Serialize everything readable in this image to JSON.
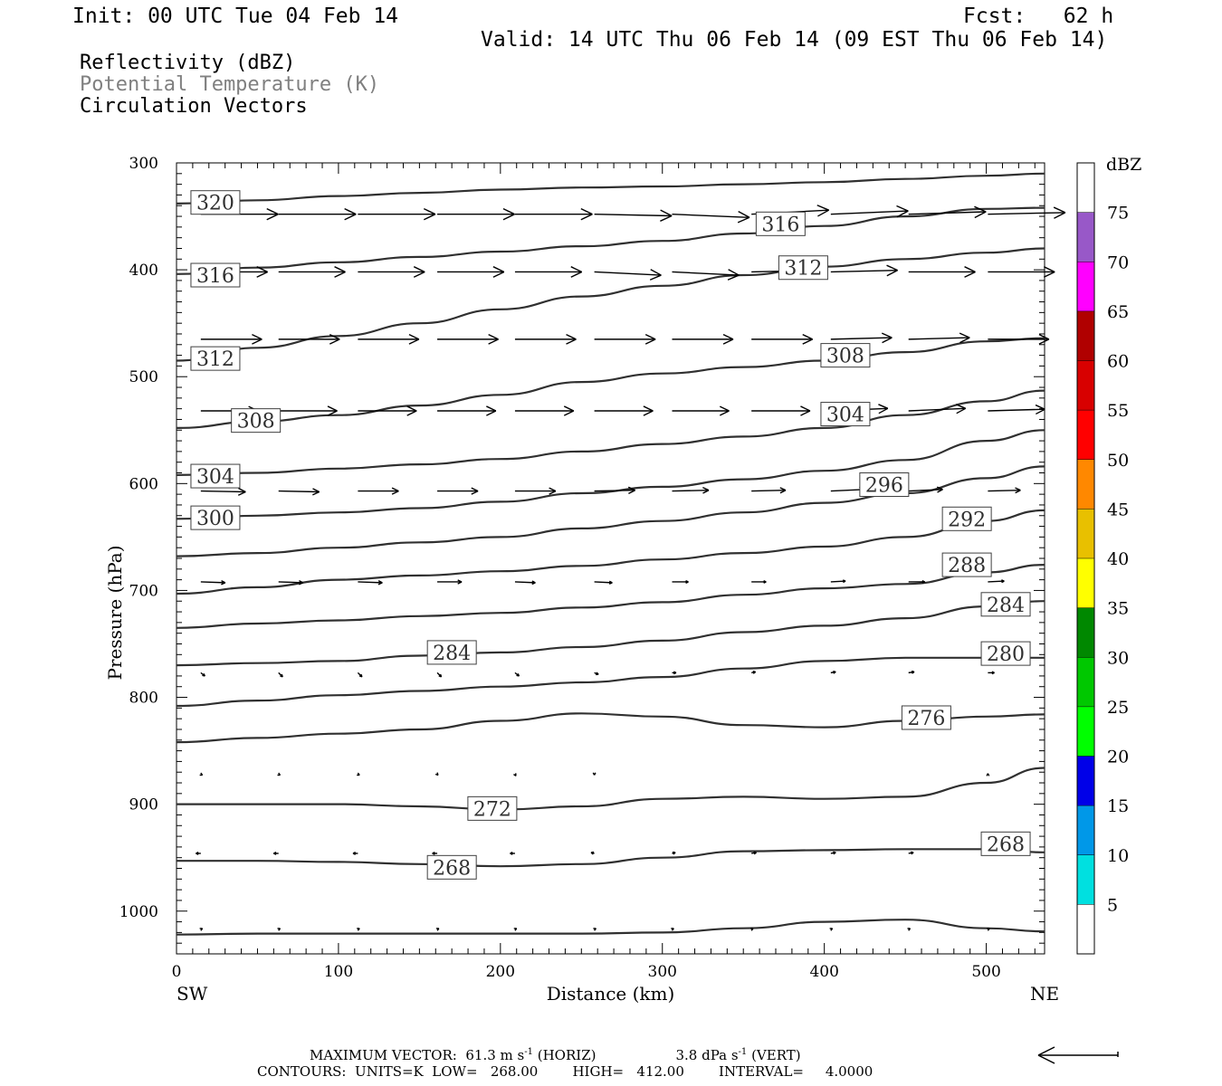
{
  "header": {
    "init": "Init: 00 UTC Tue 04 Feb 14",
    "fcst": "Fcst:   62 h",
    "valid": "Valid: 14 UTC Thu 06 Feb 14 (09 EST Thu 06 Feb 14)"
  },
  "fields": [
    {
      "label": "Reflectivity (dBZ)",
      "color": "#000000"
    },
    {
      "label": "Potential Temperature (K)",
      "color": "#808080"
    },
    {
      "label": "Circulation Vectors",
      "color": "#000000"
    }
  ],
  "chart_data": {
    "type": "line",
    "ylabel": "Pressure (hPa)",
    "xlabel": "Distance (km)",
    "xlim": [
      0,
      536
    ],
    "ylim": [
      1040,
      300
    ],
    "xticks": [
      0,
      100,
      200,
      300,
      400,
      500
    ],
    "yticks": [
      300,
      400,
      500,
      600,
      700,
      800,
      900,
      1000
    ],
    "x_left_label": "SW",
    "x_right_label": "NE",
    "x": [
      0,
      50,
      100,
      150,
      200,
      250,
      300,
      350,
      400,
      450,
      500,
      536
    ],
    "contours": [
      {
        "name": "",
        "values": [
          1022,
          1021,
          1021,
          1021,
          1021,
          1021,
          1020,
          1016,
          1010,
          1008,
          1016,
          1019
        ]
      },
      {
        "name": "268",
        "values": [
          953,
          953,
          954,
          956,
          958,
          956,
          950,
          944,
          943,
          942,
          942,
          945
        ]
      },
      {
        "name": "272",
        "values": [
          900,
          900,
          900,
          902,
          905,
          902,
          895,
          893,
          895,
          893,
          880,
          866
        ]
      },
      {
        "name": "276",
        "values": [
          842,
          838,
          834,
          830,
          822,
          815,
          818,
          826,
          828,
          822,
          818,
          816
        ]
      },
      {
        "name": "280",
        "values": [
          808,
          803,
          798,
          794,
          790,
          786,
          781,
          773,
          766,
          763,
          763,
          763
        ]
      },
      {
        "name": "284",
        "values": [
          770,
          768,
          766,
          761,
          758,
          753,
          747,
          739,
          733,
          726,
          715,
          710
        ]
      },
      {
        "name": "288",
        "values": [
          735,
          731,
          728,
          724,
          721,
          716,
          711,
          704,
          698,
          694,
          683,
          676
        ]
      },
      {
        "name": "292",
        "values": [
          703,
          697,
          690,
          686,
          682,
          677,
          671,
          665,
          659,
          650,
          635,
          625
        ]
      },
      {
        "name": "296",
        "values": [
          668,
          665,
          660,
          655,
          650,
          642,
          635,
          627,
          618,
          609,
          595,
          584
        ]
      },
      {
        "name": "300",
        "values": [
          633,
          630,
          627,
          623,
          617,
          609,
          603,
          596,
          588,
          578,
          560,
          550
        ]
      },
      {
        "name": "304",
        "values": [
          592,
          590,
          586,
          582,
          577,
          570,
          563,
          556,
          548,
          536,
          523,
          513
        ]
      },
      {
        "name": "308",
        "values": [
          548,
          542,
          536,
          527,
          517,
          505,
          497,
          491,
          485,
          477,
          467,
          464
        ]
      },
      {
        "name": "312",
        "values": [
          485,
          473,
          462,
          450,
          437,
          425,
          415,
          405,
          397,
          390,
          384,
          380
        ]
      },
      {
        "name": "316",
        "values": [
          404,
          398,
          393,
          388,
          383,
          378,
          373,
          366,
          359,
          350,
          343,
          342
        ]
      },
      {
        "name": "320",
        "values": [
          338,
          335,
          331,
          328,
          325,
          323,
          322,
          320,
          318,
          315,
          312,
          310
        ]
      }
    ],
    "contour_labels": [
      {
        "text": "320",
        "x": 24,
        "y": 337
      },
      {
        "text": "316",
        "x": 373,
        "y": 357
      },
      {
        "text": "316",
        "x": 24,
        "y": 405
      },
      {
        "text": "312",
        "x": 387,
        "y": 398
      },
      {
        "text": "312",
        "x": 24,
        "y": 483
      },
      {
        "text": "308",
        "x": 413,
        "y": 480
      },
      {
        "text": "308",
        "x": 49,
        "y": 541
      },
      {
        "text": "304",
        "x": 413,
        "y": 535
      },
      {
        "text": "304",
        "x": 24,
        "y": 593
      },
      {
        "text": "296",
        "x": 437,
        "y": 601
      },
      {
        "text": "300",
        "x": 24,
        "y": 632
      },
      {
        "text": "292",
        "x": 488,
        "y": 633
      },
      {
        "text": "288",
        "x": 488,
        "y": 676
      },
      {
        "text": "284",
        "x": 170,
        "y": 758
      },
      {
        "text": "284",
        "x": 512,
        "y": 713
      },
      {
        "text": "280",
        "x": 512,
        "y": 759
      },
      {
        "text": "276",
        "x": 463,
        "y": 819
      },
      {
        "text": "272",
        "x": 195,
        "y": 904
      },
      {
        "text": "268",
        "x": 170,
        "y": 959
      },
      {
        "text": "268",
        "x": 512,
        "y": 937
      }
    ],
    "vector_levels": [
      {
        "pressure": 348,
        "u": [
          0.95,
          0.95,
          0.95,
          0.95,
          0.95,
          0.95,
          0.95,
          0.95,
          0.95,
          0.95,
          0.95
        ],
        "w": [
          0.0,
          0.0,
          0.0,
          0.0,
          0.0,
          -0.02,
          -0.04,
          0.05,
          0.04,
          0.03,
          0.02
        ]
      },
      {
        "pressure": 402,
        "u": [
          0.82,
          0.82,
          0.82,
          0.82,
          0.82,
          0.82,
          0.82,
          0.85,
          0.82,
          0.82,
          0.82
        ],
        "w": [
          0.0,
          0.0,
          0.0,
          0.0,
          0.0,
          -0.04,
          -0.04,
          0.02,
          0.02,
          0.0,
          0.0
        ]
      },
      {
        "pressure": 465,
        "u": [
          0.75,
          0.75,
          0.75,
          0.75,
          0.75,
          0.75,
          0.75,
          0.75,
          0.75,
          0.75,
          0.75
        ],
        "w": [
          0.0,
          0.0,
          0.0,
          0.0,
          0.0,
          0.0,
          0.0,
          0.0,
          0.02,
          0.02,
          0.0
        ]
      },
      {
        "pressure": 532,
        "u": [
          0.7,
          0.72,
          0.72,
          0.72,
          0.72,
          0.72,
          0.7,
          0.72,
          0.7,
          0.7,
          0.7
        ],
        "w": [
          0.0,
          0.0,
          0.0,
          0.0,
          0.0,
          0.0,
          0.0,
          0.0,
          0.03,
          0.03,
          0.02
        ]
      },
      {
        "pressure": 607,
        "u": [
          0.55,
          0.5,
          0.5,
          0.5,
          0.5,
          0.5,
          0.45,
          0.42,
          0.42,
          0.42,
          0.4
        ],
        "w": [
          -0.01,
          -0.01,
          0.0,
          0.0,
          0.0,
          0.01,
          0.01,
          0.01,
          0.02,
          0.02,
          0.01
        ]
      },
      {
        "pressure": 692,
        "u": [
          0.3,
          0.3,
          0.3,
          0.3,
          0.25,
          0.22,
          0.2,
          0.18,
          0.18,
          0.2,
          0.2
        ],
        "w": [
          -0.01,
          -0.01,
          -0.01,
          0.0,
          -0.01,
          -0.01,
          0.0,
          0.0,
          0.01,
          0.0,
          0.01
        ]
      },
      {
        "pressure": 777,
        "u": [
          0.05,
          0.05,
          0.05,
          0.05,
          0.05,
          0.05,
          0.05,
          0.05,
          0.06,
          0.07,
          0.08
        ],
        "w": [
          -0.04,
          -0.05,
          -0.05,
          -0.05,
          -0.04,
          -0.02,
          0.0,
          0.01,
          0.01,
          0.01,
          0.0
        ]
      },
      {
        "pressure": 872,
        "u": [
          0.02,
          0.02,
          0.02,
          0.01,
          0.01,
          0.0,
          0.0,
          0.0,
          0.0,
          0.0,
          0.0
        ],
        "w": [
          -0.01,
          -0.01,
          -0.01,
          -0.01,
          -0.02,
          -0.01,
          0.0,
          0.0,
          0.0,
          0.0,
          0.01
        ]
      },
      {
        "pressure": 946,
        "u": [
          -0.06,
          -0.06,
          -0.06,
          -0.06,
          -0.06,
          -0.04,
          0.04,
          0.06,
          0.06,
          0.06,
          0.06
        ],
        "w": [
          0.0,
          0.0,
          0.0,
          0.0,
          0.0,
          0.01,
          0.01,
          0.01,
          0.01,
          0.01,
          0.01
        ]
      },
      {
        "pressure": 1017,
        "u": [
          0.02,
          0.02,
          0.02,
          0.02,
          0.02,
          0.02,
          0.02,
          0.02,
          0.02,
          0.02,
          0.02
        ],
        "w": [
          0.01,
          0.01,
          0.01,
          0.01,
          0.01,
          0.01,
          0.01,
          0.01,
          0.01,
          0.01,
          0.01
        ]
      }
    ],
    "vector_x": [
      15,
      63,
      112,
      161,
      209,
      258,
      306,
      355,
      404,
      452,
      501
    ],
    "colorbar": {
      "title": "dBZ",
      "labels": [
        "5",
        "10",
        "15",
        "20",
        "25",
        "30",
        "35",
        "40",
        "45",
        "50",
        "55",
        "60",
        "65",
        "70",
        "75"
      ],
      "colors": [
        "#ffffff",
        "#00e0e0",
        "#0098e8",
        "#0000e8",
        "#00ff00",
        "#00c800",
        "#008800",
        "#ffff00",
        "#e8c000",
        "#ff8800",
        "#ff0000",
        "#d80000",
        "#b00000",
        "#ff00ff",
        "#9858c8",
        "#ffffff"
      ]
    }
  },
  "footer": {
    "max_vector": "MAXIMUM VECTOR:  61.3 m s",
    "max_vector_exp": "-1",
    "max_vector_horiz": " (HORIZ)",
    "max_vert": "3.8 dPa s",
    "max_vert_exp": "-1",
    "max_vert_tail": " (VERT)",
    "contours": "CONTOURS:  UNITS=K  LOW=   268.00        HIGH=   412.00        INTERVAL=     4.0000"
  }
}
